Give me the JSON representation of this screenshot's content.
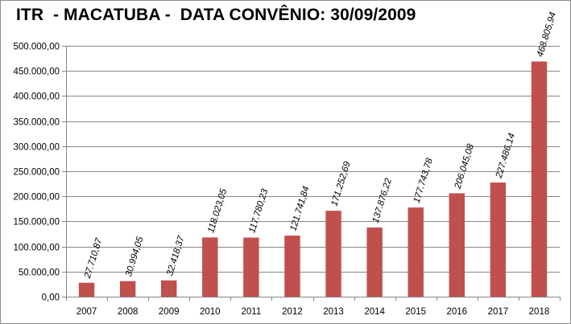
{
  "chart_data": {
    "type": "bar",
    "title": "ITR  - MACATUBA -  DATA CONVÊNIO: 30/09/2009",
    "xlabel": "",
    "ylabel": "",
    "categories": [
      "2007",
      "2008",
      "2009",
      "2010",
      "2011",
      "2012",
      "2013",
      "2014",
      "2015",
      "2016",
      "2017",
      "2018"
    ],
    "values": [
      27710.87,
      30994.05,
      32418.37,
      118023.05,
      117780.23,
      121741.84,
      171252.69,
      137876.22,
      177743.78,
      206045.08,
      227486.14,
      468805.94
    ],
    "value_labels": [
      "27.710,87",
      "30.994,05",
      "32.418,37",
      "118.023,05",
      "117.780,23",
      "121.741,84",
      "171.252,69",
      "137.876,22",
      "177.743,78",
      "206.045,08",
      "227.486,14",
      "468.805,94"
    ],
    "ylim": [
      0,
      500000
    ],
    "yticks": [
      0,
      50000,
      100000,
      150000,
      200000,
      250000,
      300000,
      350000,
      400000,
      450000,
      500000
    ],
    "ytick_labels": [
      "0,00",
      "50.000,00",
      "100.000,00",
      "150.000,00",
      "200.000,00",
      "250.000,00",
      "300.000,00",
      "350.000,00",
      "400.000,00",
      "450.000,00",
      "500.000,00"
    ],
    "grid": true,
    "legend": "none",
    "bar_color": "#c0504d",
    "grid_color": "#868686"
  }
}
